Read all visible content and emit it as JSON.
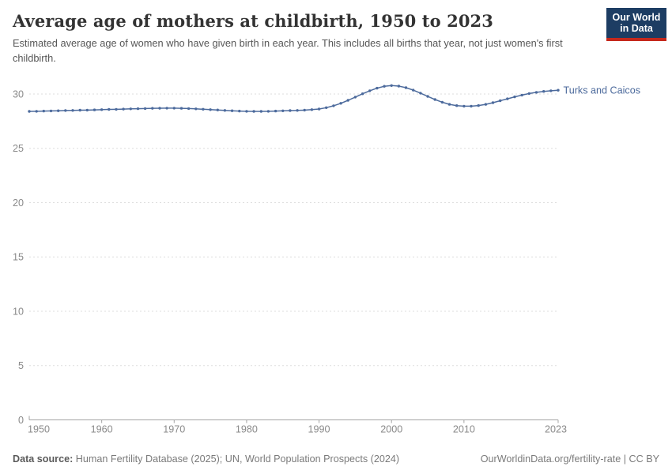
{
  "header": {
    "title": "Average age of mothers at childbirth, 1950 to 2023",
    "subtitle": "Estimated average age of women who have given birth in each year. This includes all births that year, not just women's first childbirth.",
    "logo": {
      "line1": "Our World",
      "line2": "in Data",
      "bg_color": "#1d3d63",
      "accent_color": "#c5281c"
    }
  },
  "chart_data": {
    "type": "line",
    "title": "Average age of mothers at childbirth, 1950 to 2023",
    "xlabel": "",
    "ylabel": "",
    "xlim": [
      1950,
      2023
    ],
    "ylim": [
      0,
      30
    ],
    "yticks": [
      0,
      5,
      10,
      15,
      20,
      25,
      30
    ],
    "xticks": [
      1950,
      1960,
      1970,
      1980,
      1990,
      2000,
      2010,
      2023
    ],
    "grid": "horizontal-dashed",
    "legend_position": "end-of-line",
    "series": [
      {
        "name": "Turks and Caicos",
        "color": "#4C6A9C",
        "x": [
          1950,
          1951,
          1952,
          1953,
          1954,
          1955,
          1956,
          1957,
          1958,
          1959,
          1960,
          1961,
          1962,
          1963,
          1964,
          1965,
          1966,
          1967,
          1968,
          1969,
          1970,
          1971,
          1972,
          1973,
          1974,
          1975,
          1976,
          1977,
          1978,
          1979,
          1980,
          1981,
          1982,
          1983,
          1984,
          1985,
          1986,
          1987,
          1988,
          1989,
          1990,
          1991,
          1992,
          1993,
          1994,
          1995,
          1996,
          1997,
          1998,
          1999,
          2000,
          2001,
          2002,
          2003,
          2004,
          2005,
          2006,
          2007,
          2008,
          2009,
          2010,
          2011,
          2012,
          2013,
          2014,
          2015,
          2016,
          2017,
          2018,
          2019,
          2020,
          2021,
          2022,
          2023
        ],
        "values": [
          28.4,
          28.41,
          28.43,
          28.44,
          28.46,
          28.48,
          28.49,
          28.51,
          28.52,
          28.54,
          28.56,
          28.58,
          28.59,
          28.61,
          28.63,
          28.65,
          28.66,
          28.68,
          28.69,
          28.7,
          28.7,
          28.68,
          28.66,
          28.63,
          28.6,
          28.56,
          28.53,
          28.49,
          28.46,
          28.43,
          28.41,
          28.4,
          28.4,
          28.41,
          28.43,
          28.45,
          28.47,
          28.49,
          28.52,
          28.56,
          28.62,
          28.74,
          28.92,
          29.14,
          29.42,
          29.72,
          30.02,
          30.3,
          30.54,
          30.71,
          30.78,
          30.73,
          30.58,
          30.36,
          30.08,
          29.78,
          29.49,
          29.24,
          29.05,
          28.93,
          28.88,
          28.88,
          28.94,
          29.05,
          29.2,
          29.38,
          29.56,
          29.74,
          29.9,
          30.04,
          30.15,
          30.24,
          30.3,
          30.35
        ]
      }
    ],
    "colors": {
      "line": "#4C6A9C",
      "gridline": "#dedede",
      "axis": "#a3a3a3",
      "tick_label": "#8a8a8a"
    }
  },
  "footer": {
    "source_label": "Data source:",
    "source_text": " Human Fertility Database (2025); UN, World Population Prospects (2024)",
    "rights": "OurWorldinData.org/fertility-rate | CC BY"
  }
}
